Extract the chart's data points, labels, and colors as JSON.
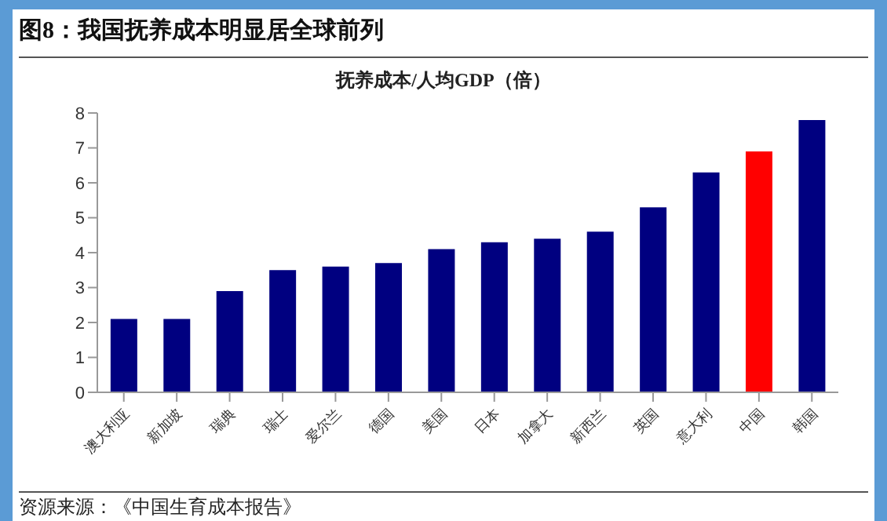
{
  "chart_data": {
    "type": "bar",
    "title": "图8：我国抚养成本明显居全球前列",
    "subtitle": "抚养成本/人均GDP（倍）",
    "categories": [
      "澳大利亚",
      "新加坡",
      "瑞典",
      "瑞士",
      "爱尔兰",
      "德国",
      "美国",
      "日本",
      "加拿大",
      "新西兰",
      "英国",
      "意大利",
      "中国",
      "韩国"
    ],
    "values": [
      2.1,
      2.1,
      2.9,
      3.5,
      3.6,
      3.7,
      4.1,
      4.3,
      4.4,
      4.6,
      5.3,
      6.3,
      6.9,
      7.8
    ],
    "colors": [
      "#000080",
      "#000080",
      "#000080",
      "#000080",
      "#000080",
      "#000080",
      "#000080",
      "#000080",
      "#000080",
      "#000080",
      "#000080",
      "#000080",
      "#ff0000",
      "#000080"
    ],
    "ylim": [
      0,
      8
    ],
    "yticks": [
      0,
      1,
      2,
      3,
      4,
      5,
      6,
      7,
      8
    ],
    "grid": false,
    "annotations": [
      "资源来源：《中国生育成本报告》"
    ]
  }
}
